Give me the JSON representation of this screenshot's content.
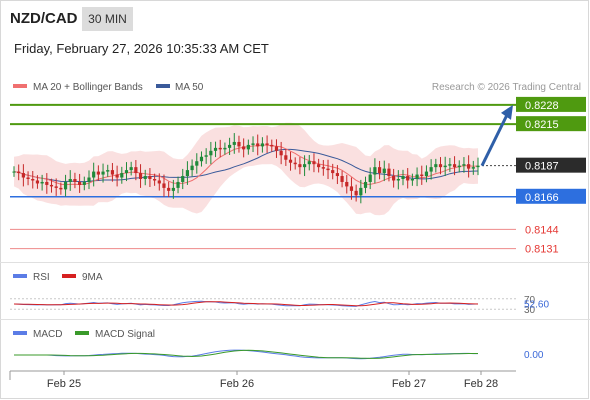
{
  "header": {
    "pair": "NZD/CAD",
    "timeframe": "30 MIN",
    "datetime": "Friday, February 27, 2026 10:35:33 AM CET"
  },
  "legend": {
    "ma20": "MA 20 + Bollinger Bands",
    "ma50": "MA 50",
    "copyright": "Research © 2026 Trading Central",
    "rsi": "RSI",
    "rsi_ma": "9MA",
    "macd": "MACD",
    "macd_signal": "MACD Signal"
  },
  "colors": {
    "green_level": "#4f9a10",
    "blue_level": "#2d6fdf",
    "red_level": "#e53935",
    "current": "#2b2b2b",
    "candle_up": "#1f8a3a",
    "candle_down": "#c62828",
    "ma20": "#f07070",
    "ma50": "#3a5a9a",
    "bollinger": "#f8d6d6",
    "arrow": "#2f5fa8"
  },
  "chart_data": {
    "type": "candlestick",
    "ylim": [
      0.8122,
      0.8234
    ],
    "levels": [
      {
        "label": "0.8228",
        "value": 0.8228,
        "kind": "resistance"
      },
      {
        "label": "0.8215",
        "value": 0.8215,
        "kind": "resistance"
      },
      {
        "label": "0.8187",
        "value": 0.8187,
        "kind": "current"
      },
      {
        "label": "0.8166",
        "value": 0.8166,
        "kind": "pivot"
      },
      {
        "label": "0.8144",
        "value": 0.8144,
        "kind": "support"
      },
      {
        "label": "0.8131",
        "value": 0.8131,
        "kind": "support"
      }
    ],
    "close": [
      0.8183,
      0.8182,
      0.8179,
      0.8178,
      0.8177,
      0.8175,
      0.8176,
      0.8174,
      0.8173,
      0.8172,
      0.8171,
      0.8176,
      0.8178,
      0.8176,
      0.8174,
      0.8176,
      0.8179,
      0.8183,
      0.8181,
      0.8183,
      0.8184,
      0.8181,
      0.8179,
      0.8182,
      0.8184,
      0.8186,
      0.8182,
      0.8178,
      0.818,
      0.8178,
      0.8177,
      0.8175,
      0.8172,
      0.817,
      0.8172,
      0.8176,
      0.818,
      0.8184,
      0.8187,
      0.819,
      0.8193,
      0.8194,
      0.8197,
      0.8199,
      0.8198,
      0.8199,
      0.8201,
      0.8203,
      0.82,
      0.8198,
      0.8201,
      0.8202,
      0.82,
      0.8202,
      0.8201,
      0.82,
      0.8197,
      0.8194,
      0.8191,
      0.8189,
      0.8188,
      0.8186,
      0.8188,
      0.819,
      0.8188,
      0.8186,
      0.8185,
      0.8184,
      0.8182,
      0.818,
      0.8176,
      0.8173,
      0.817,
      0.8167,
      0.8172,
      0.8176,
      0.8181,
      0.8186,
      0.8182,
      0.8185,
      0.818,
      0.8177,
      0.8178,
      0.818,
      0.8177,
      0.8178,
      0.8181,
      0.818,
      0.8183,
      0.8186,
      0.8188,
      0.8186,
      0.8187,
      0.8188,
      0.8186,
      0.8187,
      0.8188,
      0.8185,
      0.8186,
      0.8187
    ],
    "arrow": {
      "from": 0.8187,
      "to": 0.8228
    },
    "x_labels": [
      "Feb 25",
      "Feb 26",
      "Feb 27",
      "Feb 28"
    ],
    "rsi": {
      "levels": [
        70,
        30
      ],
      "value_label": "52.60",
      "value": 52.6
    },
    "macd": {
      "value_label": "0.00",
      "value": 0.0
    }
  }
}
